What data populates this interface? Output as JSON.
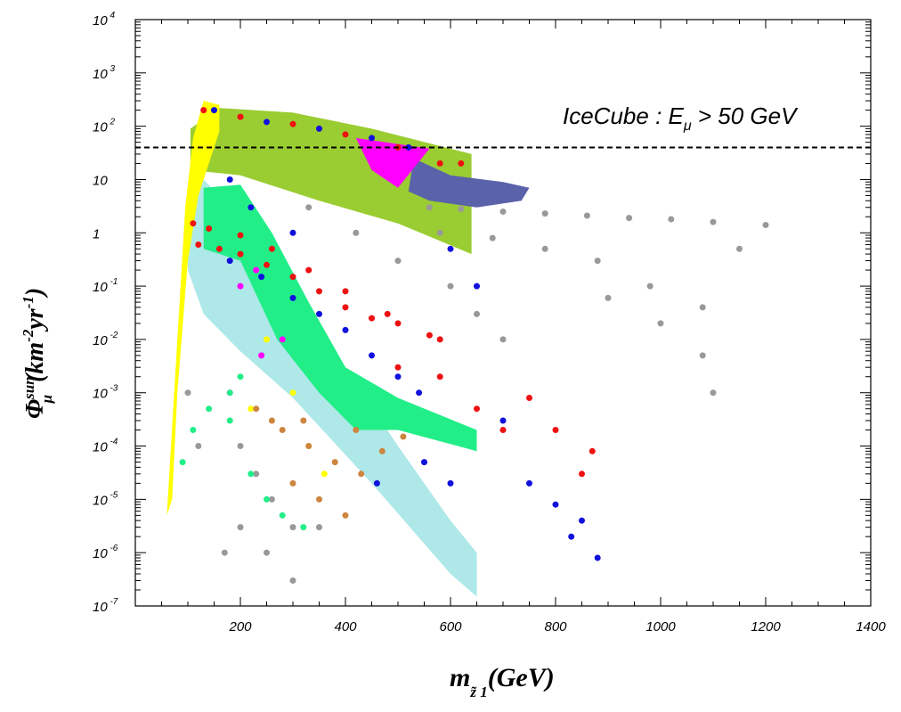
{
  "chart_data": {
    "type": "scatter",
    "xlim": [
      0,
      1400
    ],
    "ylim_log10": [
      -7,
      4
    ],
    "log_y": true,
    "grid": false,
    "x_ticks": [
      "200",
      "400",
      "600",
      "800",
      "1000",
      "1200",
      "1400"
    ],
    "y_ticks": [
      {
        "value": 10000,
        "mantissa": "10",
        "exp": "4"
      },
      {
        "value": 1000,
        "mantissa": "10",
        "exp": "3"
      },
      {
        "value": 100,
        "mantissa": "10",
        "exp": "2"
      },
      {
        "value": 10,
        "mantissa": "10",
        "exp": ""
      },
      {
        "value": 1,
        "mantissa": "1",
        "exp": ""
      },
      {
        "value": 0.1,
        "mantissa": "10",
        "exp": "-1"
      },
      {
        "value": 0.01,
        "mantissa": "10",
        "exp": "-2"
      },
      {
        "value": 0.001,
        "mantissa": "10",
        "exp": "-3"
      },
      {
        "value": 0.0001,
        "mantissa": "10",
        "exp": "-4"
      },
      {
        "value": 1e-05,
        "mantissa": "10",
        "exp": "-5"
      },
      {
        "value": 1e-06,
        "mantissa": "10",
        "exp": "-6"
      },
      {
        "value": 1e-07,
        "mantissa": "10",
        "exp": "-7"
      }
    ],
    "xlabel": {
      "main": "m",
      "sub": "z̃ 1",
      "rest": "(GeV)"
    },
    "ylabel": {
      "phi": "Φ",
      "sub": "μ",
      "sup": "sun",
      "rest1": "(km",
      "sup2": "-2",
      "rest2": "yr",
      "sup3": "-1",
      "rest3": ")"
    },
    "threshold": {
      "value": 40,
      "style": "dashed",
      "label": "IceCube : E",
      "label_sub": "μ",
      "label_rest": " > 50 GeV"
    },
    "colors": {
      "gray": "#999999",
      "olive": "#9acd32",
      "yellow": "#ffff00",
      "red": "#ee1111",
      "blue": "#1111dd",
      "magenta": "#ff00ff",
      "slate": "#5a62aa",
      "cyan": "#aee8e8",
      "mint": "#22ee88",
      "brown": "#cd853f"
    },
    "regions": [
      {
        "name": "cyan-band",
        "color": "cyan",
        "polygon": [
          [
            100,
            8
          ],
          [
            130,
            10
          ],
          [
            200,
            2
          ],
          [
            300,
            0.1
          ],
          [
            400,
            0.003
          ],
          [
            500,
            0.0001
          ],
          [
            600,
            4e-06
          ],
          [
            650,
            1e-06
          ],
          [
            650,
            1.5e-07
          ],
          [
            600,
            4e-07
          ],
          [
            450,
            2e-05
          ],
          [
            300,
            0.0008
          ],
          [
            200,
            0.006
          ],
          [
            130,
            0.03
          ],
          [
            100,
            0.2
          ]
        ]
      },
      {
        "name": "mint-band",
        "color": "mint",
        "polygon": [
          [
            130,
            7
          ],
          [
            200,
            8
          ],
          [
            260,
            1
          ],
          [
            330,
            0.05
          ],
          [
            400,
            0.003
          ],
          [
            500,
            0.0008
          ],
          [
            650,
            0.0002
          ],
          [
            650,
            8e-05
          ],
          [
            500,
            0.0002
          ],
          [
            420,
            0.0002
          ],
          [
            350,
            0.001
          ],
          [
            270,
            0.01
          ],
          [
            200,
            0.3
          ],
          [
            130,
            0.5
          ]
        ]
      },
      {
        "name": "olive-band",
        "color": "olive",
        "polygon": [
          [
            105,
            90
          ],
          [
            160,
            220
          ],
          [
            300,
            180
          ],
          [
            450,
            90
          ],
          [
            640,
            30
          ],
          [
            640,
            0.4
          ],
          [
            500,
            1.5
          ],
          [
            350,
            4
          ],
          [
            200,
            12
          ],
          [
            105,
            15
          ]
        ]
      },
      {
        "name": "yellow-edge",
        "color": "yellow",
        "polygon": [
          [
            60,
            5e-06
          ],
          [
            80,
            0.01
          ],
          [
            95,
            3
          ],
          [
            110,
            60
          ],
          [
            130,
            300
          ],
          [
            160,
            250
          ],
          [
            160,
            80
          ],
          [
            120,
            5
          ],
          [
            100,
            0.3
          ],
          [
            80,
            0.001
          ],
          [
            70,
            1e-05
          ]
        ]
      },
      {
        "name": "slate-patch",
        "color": "slate",
        "polygon": [
          [
            530,
            25
          ],
          [
            600,
            12
          ],
          [
            700,
            9
          ],
          [
            750,
            7
          ],
          [
            735,
            4
          ],
          [
            650,
            3
          ],
          [
            560,
            4
          ],
          [
            520,
            6
          ]
        ]
      },
      {
        "name": "magenta-patch",
        "color": "magenta",
        "polygon": [
          [
            420,
            60
          ],
          [
            560,
            38
          ],
          [
            500,
            7
          ],
          [
            450,
            15
          ]
        ]
      }
    ],
    "series": [
      {
        "color": "gray",
        "points": [
          [
            560,
            3
          ],
          [
            620,
            2.8
          ],
          [
            700,
            2.5
          ],
          [
            780,
            2.3
          ],
          [
            860,
            2.1
          ],
          [
            940,
            1.9
          ],
          [
            1020,
            1.8
          ],
          [
            1100,
            1.6
          ],
          [
            1200,
            1.4
          ],
          [
            580,
            1
          ],
          [
            680,
            0.8
          ],
          [
            780,
            0.5
          ],
          [
            880,
            0.3
          ],
          [
            980,
            0.1
          ],
          [
            1080,
            0.04
          ],
          [
            1150,
            0.5
          ],
          [
            900,
            0.06
          ],
          [
            1000,
            0.02
          ],
          [
            1080,
            0.005
          ],
          [
            1100,
            0.001
          ],
          [
            330,
            3
          ],
          [
            420,
            1
          ],
          [
            500,
            0.3
          ],
          [
            600,
            0.1
          ],
          [
            650,
            0.03
          ],
          [
            700,
            0.01
          ],
          [
            200,
            0.0001
          ],
          [
            230,
            3e-05
          ],
          [
            260,
            1e-05
          ],
          [
            300,
            3e-06
          ],
          [
            170,
            1e-06
          ],
          [
            200,
            3e-06
          ],
          [
            250,
            1e-06
          ],
          [
            300,
            3e-07
          ],
          [
            350,
            3e-06
          ],
          [
            100,
            0.001
          ],
          [
            120,
            0.0001
          ]
        ]
      },
      {
        "color": "red",
        "points": [
          [
            120,
            0.6
          ],
          [
            160,
            0.5
          ],
          [
            200,
            0.4
          ],
          [
            250,
            0.25
          ],
          [
            300,
            0.15
          ],
          [
            350,
            0.08
          ],
          [
            400,
            0.04
          ],
          [
            450,
            0.025
          ],
          [
            500,
            0.02
          ],
          [
            560,
            0.012
          ],
          [
            110,
            1.5
          ],
          [
            140,
            1.2
          ],
          [
            200,
            0.9
          ],
          [
            260,
            0.5
          ],
          [
            330,
            0.2
          ],
          [
            400,
            0.08
          ],
          [
            480,
            0.03
          ],
          [
            580,
            0.01
          ],
          [
            500,
            0.003
          ],
          [
            580,
            0.002
          ],
          [
            650,
            0.0005
          ],
          [
            700,
            0.0002
          ],
          [
            750,
            0.0008
          ],
          [
            800,
            0.0002
          ],
          [
            850,
            3e-05
          ],
          [
            870,
            8e-05
          ],
          [
            130,
            200
          ],
          [
            200,
            150
          ],
          [
            300,
            110
          ],
          [
            400,
            70
          ],
          [
            500,
            40
          ],
          [
            580,
            20
          ],
          [
            620,
            20
          ]
        ]
      },
      {
        "color": "blue",
        "points": [
          [
            180,
            0.3
          ],
          [
            240,
            0.15
          ],
          [
            300,
            0.06
          ],
          [
            350,
            0.03
          ],
          [
            400,
            0.015
          ],
          [
            450,
            0.005
          ],
          [
            500,
            0.002
          ],
          [
            540,
            0.001
          ],
          [
            600,
            0.5
          ],
          [
            650,
            0.1
          ],
          [
            700,
            0.0003
          ],
          [
            750,
            2e-05
          ],
          [
            800,
            8e-06
          ],
          [
            830,
            2e-06
          ],
          [
            850,
            4e-06
          ],
          [
            880,
            8e-07
          ],
          [
            550,
            5e-05
          ],
          [
            600,
            2e-05
          ],
          [
            460,
            2e-05
          ],
          [
            150,
            200
          ],
          [
            250,
            120
          ],
          [
            350,
            90
          ],
          [
            450,
            60
          ],
          [
            520,
            40
          ],
          [
            180,
            10
          ],
          [
            220,
            3
          ],
          [
            300,
            1
          ]
        ]
      },
      {
        "color": "magenta",
        "points": [
          [
            200,
            0.1
          ],
          [
            230,
            0.2
          ],
          [
            280,
            0.01
          ],
          [
            180,
            0.001
          ],
          [
            240,
            0.005
          ]
        ]
      },
      {
        "color": "yellow",
        "points": [
          [
            250,
            0.01
          ],
          [
            300,
            0.001
          ],
          [
            330,
            0.0001
          ],
          [
            360,
            3e-05
          ],
          [
            220,
            0.0005
          ]
        ]
      },
      {
        "color": "brown",
        "points": [
          [
            230,
            0.0005
          ],
          [
            280,
            0.0002
          ],
          [
            330,
            0.0001
          ],
          [
            380,
            5e-05
          ],
          [
            430,
            3e-05
          ],
          [
            470,
            8e-05
          ],
          [
            510,
            0.00015
          ],
          [
            300,
            2e-05
          ],
          [
            350,
            1e-05
          ],
          [
            400,
            5e-06
          ],
          [
            260,
            0.0003
          ],
          [
            320,
            0.0003
          ],
          [
            420,
            0.0002
          ]
        ]
      },
      {
        "color": "mint",
        "points": [
          [
            90,
            5e-05
          ],
          [
            110,
            0.0002
          ],
          [
            140,
            0.0005
          ],
          [
            180,
            0.0003
          ],
          [
            220,
            3e-05
          ],
          [
            250,
            1e-05
          ],
          [
            280,
            5e-06
          ],
          [
            320,
            3e-06
          ],
          [
            180,
            0.001
          ],
          [
            200,
            0.002
          ],
          [
            450,
            0.0008
          ],
          [
            480,
            0.0003
          ]
        ]
      }
    ]
  }
}
